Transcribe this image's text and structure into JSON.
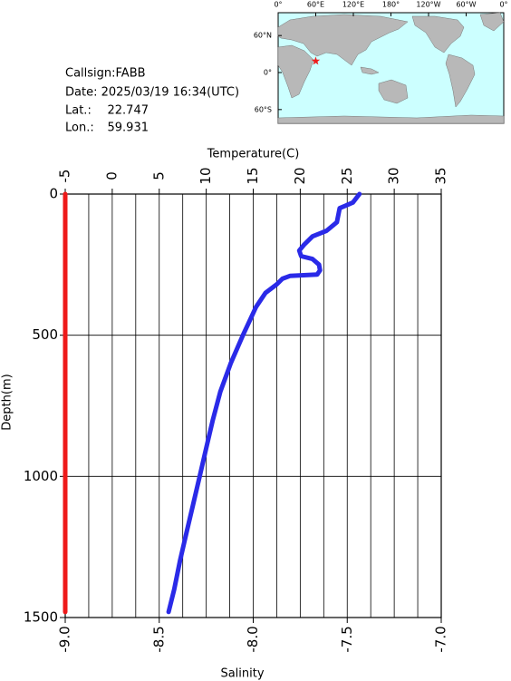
{
  "station": {
    "callsign": "Callsign:FABB",
    "date": "Date:  2025/03/19 16:34(UTC)",
    "lat_label": "Lat.:",
    "lat": 22.747,
    "lon_label": "Lon.:",
    "lon": 59.931
  },
  "map": {
    "lon_ticks": [
      {
        "value": 0,
        "label": "0°"
      },
      {
        "value": 60,
        "label": "60°E"
      },
      {
        "value": 120,
        "label": "120°E"
      },
      {
        "value": 180,
        "label": "180°"
      },
      {
        "value": 240,
        "label": "120°W"
      },
      {
        "value": 300,
        "label": "60°W"
      },
      {
        "value": 360,
        "label": "0°"
      }
    ],
    "lat_ticks": [
      {
        "value": 60,
        "label": "60°N"
      },
      {
        "value": 0,
        "label": "0°"
      },
      {
        "value": -60,
        "label": "60°S"
      }
    ]
  },
  "chart_data": {
    "type": "line",
    "xlabel": "Temperature(C)",
    "x2label": "Salinity",
    "ylabel": "Depth(m)",
    "xlim": [
      -5,
      35
    ],
    "xticks": [
      -5,
      0,
      5,
      10,
      15,
      20,
      25,
      30,
      35
    ],
    "x2lim": [
      -9,
      -7
    ],
    "x2ticks": [
      {
        "value": -9,
        "label": "-9.0"
      },
      -8.5,
      {
        "value": -8,
        "label": "-8.0"
      },
      -7.5,
      {
        "value": -7,
        "label": "-7.0"
      }
    ],
    "ylim": [
      0,
      1500
    ],
    "y_inverted": true,
    "yticks": [
      0,
      500,
      1000,
      1500
    ],
    "grid": true,
    "series": [
      {
        "color": "#2a2ae8",
        "axis": "x",
        "x": [
          26.3,
          25.6,
          24.2,
          23.9,
          22.8,
          21.3,
          20.4,
          19.9,
          20.1,
          21.3,
          22.0,
          22.1,
          21.8,
          18.9,
          18.1,
          17.5,
          16.3,
          15.3,
          14.6,
          13.9,
          12.6,
          11.5,
          10.7,
          10.0,
          9.3,
          8.6,
          7.9,
          7.2,
          6.6,
          6.0
        ],
        "y": [
          0,
          30,
          50,
          100,
          130,
          150,
          180,
          200,
          220,
          230,
          250,
          270,
          285,
          290,
          300,
          320,
          350,
          400,
          450,
          500,
          600,
          700,
          800,
          900,
          1000,
          1100,
          1200,
          1300,
          1400,
          1480
        ]
      },
      {
        "color": "#ee1a1a",
        "axis": "x2",
        "x": [
          -9,
          -9
        ],
        "y": [
          0,
          1480
        ]
      }
    ]
  }
}
